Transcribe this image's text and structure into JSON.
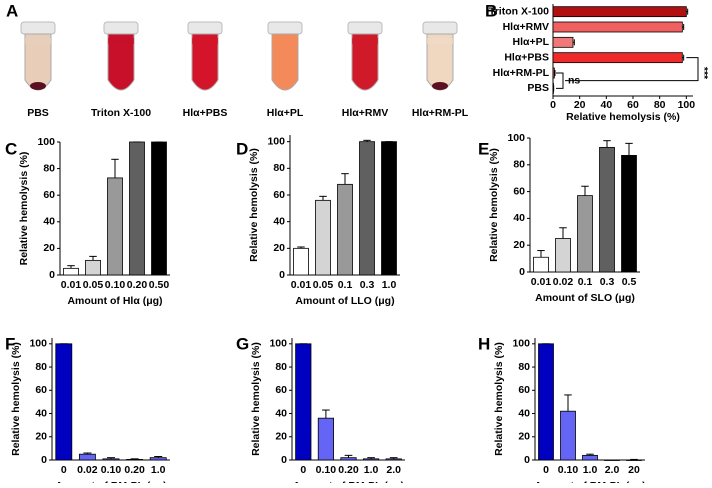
{
  "photo_panel": {
    "label": "A",
    "tubes": [
      "PBS",
      "Triton X-100",
      "Hlα+PBS",
      "Hlα+PL",
      "Hlα+RMV",
      "Hlα+RM-PL"
    ]
  },
  "chart_data": [
    {
      "type": "hbar",
      "panel_label": "B",
      "categories": [
        "Triton X-100",
        "Hlα+RMV",
        "Hlα+PL",
        "Hlα+PBS",
        "Hlα+RM-PL",
        "PBS"
      ],
      "values": [
        100,
        97,
        15,
        97,
        1,
        0
      ],
      "errors": [
        1,
        1,
        1,
        1,
        0.5,
        0.5
      ],
      "colors": [
        "#b01010",
        "#f06060",
        "#f07878",
        "#ee2a2a",
        "#f06060",
        "#f06060"
      ],
      "xlabel": "Relative hemolysis (%)",
      "xlim": [
        0,
        105
      ],
      "xticks": [
        0,
        20,
        40,
        60,
        80,
        100
      ],
      "annotations": [
        "ns",
        "***"
      ]
    },
    {
      "type": "bar",
      "panel_label": "C",
      "categories": [
        "0.01",
        "0.05",
        "0.10",
        "0.20",
        "0.50"
      ],
      "values": [
        5,
        11,
        73,
        100,
        100
      ],
      "errors": [
        2,
        3,
        14,
        0,
        0
      ],
      "colors": [
        "#ffffff",
        "#d4d4d4",
        "#999999",
        "#606060",
        "#000000"
      ],
      "xlabel": "Amount of Hlα (μg)",
      "ylabel": "Relative hemolysis (%)",
      "ylim": [
        0,
        100
      ],
      "yticks": [
        0,
        20,
        40,
        60,
        80,
        100
      ]
    },
    {
      "type": "bar",
      "panel_label": "D",
      "categories": [
        "0.01",
        "0.05",
        "0.1",
        "0.3",
        "1.0"
      ],
      "values": [
        20,
        56,
        68,
        100,
        100
      ],
      "errors": [
        1,
        3,
        8,
        1,
        0
      ],
      "colors": [
        "#ffffff",
        "#d4d4d4",
        "#999999",
        "#606060",
        "#000000"
      ],
      "xlabel": "Amount of LLO (μg)",
      "ylabel": "Relative hemolysis (%)",
      "ylim": [
        0,
        105
      ],
      "yticks": [
        0,
        20,
        40,
        60,
        80,
        100
      ]
    },
    {
      "type": "bar",
      "panel_label": "E",
      "categories": [
        "0.01",
        "0.02",
        "0.1",
        "0.3",
        "0.5"
      ],
      "values": [
        11,
        25,
        57,
        93,
        87
      ],
      "errors": [
        5,
        8,
        7,
        5,
        9
      ],
      "colors": [
        "#ffffff",
        "#d4d4d4",
        "#999999",
        "#606060",
        "#000000"
      ],
      "xlabel": "Amount of SLO (μg)",
      "ylabel": "Relative hemolysis (%)",
      "ylim": [
        0,
        100
      ],
      "yticks": [
        0,
        20,
        40,
        60,
        80,
        100
      ]
    },
    {
      "type": "bar",
      "panel_label": "F",
      "categories": [
        "0",
        "0.02",
        "0.10",
        "0.20",
        "1.0"
      ],
      "values": [
        100,
        5,
        1,
        0.5,
        2
      ],
      "errors": [
        0,
        1,
        1,
        0.5,
        1
      ],
      "colors": [
        "#0000c0",
        "#6464f5",
        "#6464f5",
        "#6464f5",
        "#6464f5"
      ],
      "xlabel": "Amount of RM-PL (μg)",
      "ylabel": "Relative hemolysis (%)",
      "ylim": [
        0,
        105
      ],
      "yticks": [
        0,
        20,
        40,
        60,
        80,
        100
      ]
    },
    {
      "type": "bar",
      "panel_label": "G",
      "categories": [
        "0",
        "0.10",
        "0.20",
        "1.0",
        "2.0"
      ],
      "values": [
        100,
        36,
        2,
        1,
        1
      ],
      "errors": [
        0,
        7,
        2,
        1,
        1
      ],
      "colors": [
        "#0000c0",
        "#6464f5",
        "#6464f5",
        "#6464f5",
        "#6464f5"
      ],
      "xlabel": "Amount of RM-PL (μg)",
      "ylabel": "Relative hemolysis (%)",
      "ylim": [
        0,
        105
      ],
      "yticks": [
        0,
        20,
        40,
        60,
        80,
        100
      ]
    },
    {
      "type": "bar",
      "panel_label": "H",
      "categories": [
        "0",
        "0.10",
        "1.0",
        "2.0",
        "20"
      ],
      "values": [
        100,
        42,
        4,
        0,
        0
      ],
      "errors": [
        0,
        14,
        1,
        0,
        0.5
      ],
      "colors": [
        "#0000c0",
        "#6464f5",
        "#6464f5",
        "#6464f5",
        "#6464f5"
      ],
      "xlabel": "Amount of RM-PL (μg)",
      "ylabel": "Relative hemolysis (%)",
      "ylim": [
        0,
        105
      ],
      "yticks": [
        0,
        20,
        40,
        60,
        80,
        100
      ]
    }
  ]
}
